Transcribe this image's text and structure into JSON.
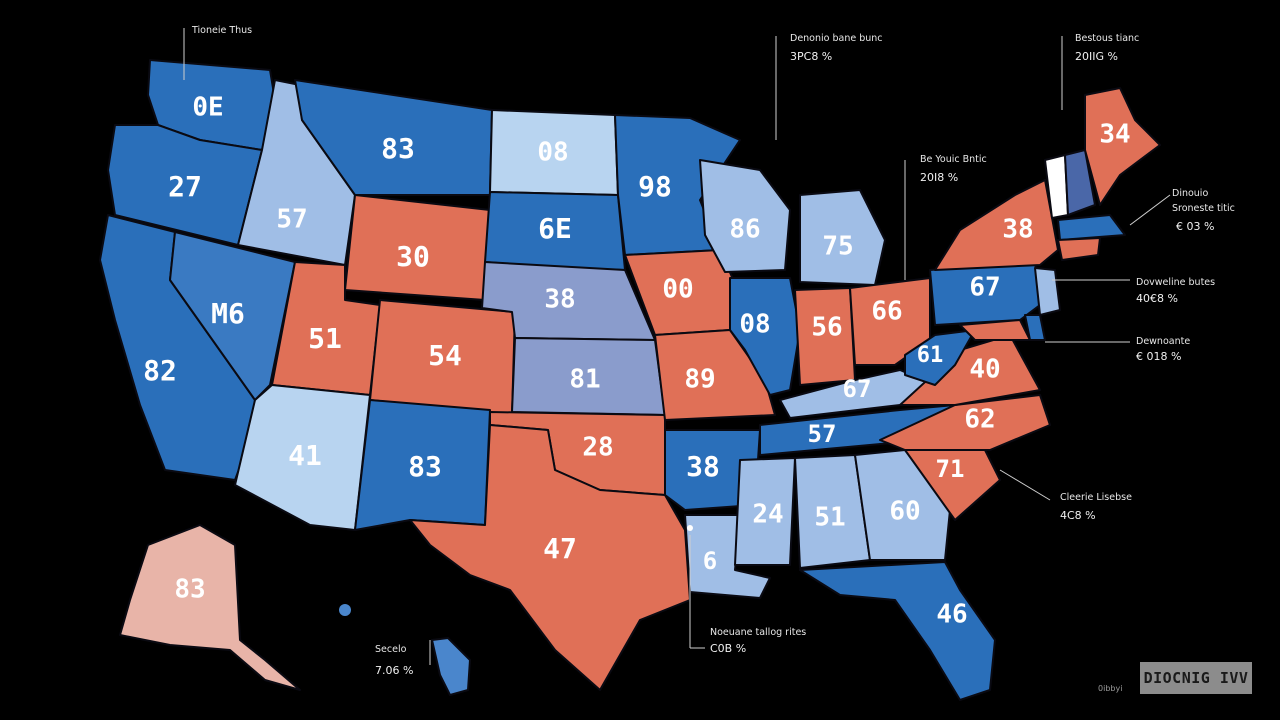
{
  "colors": {
    "blue_dark": "#2a6fba",
    "blue_mid": "#4a86cc",
    "blue_light": "#a8c8ea",
    "lavender": "#8a9ccc",
    "coral": "#e07057",
    "coral_light": "#e59a8a",
    "pink_light": "#e8b4a8",
    "background": "#000000"
  },
  "states": {
    "wa": "0E",
    "or": "27",
    "ca": "82",
    "nv": "M6",
    "id": "57",
    "mt": "83",
    "wy": "30",
    "ut": "51",
    "co": "54",
    "az": "41",
    "nm": "83",
    "nd": "08",
    "sd": "6E",
    "ne": "38",
    "ks": "81",
    "ok": "28",
    "tx": "47",
    "mn": "98",
    "ia": "00",
    "mo": "89",
    "ar": "38",
    "la": "6",
    "wi": "86",
    "il": "08",
    "mi": "75",
    "in": "56",
    "oh": "66",
    "ky": "67",
    "tn": "57",
    "ms": "24",
    "al": "51",
    "ga": "60",
    "fl": "46",
    "sc": "71",
    "nc": "62",
    "va": "40",
    "wv": "61",
    "pa": "67",
    "ny": "38",
    "me": "34",
    "ak": "83"
  },
  "callouts": [
    {
      "title": "Tioneie Thus",
      "value": ""
    },
    {
      "title": "Denonio bane bunc",
      "value": "3PC8 %"
    },
    {
      "title": "Bestous tianc",
      "value": "20IIG %"
    },
    {
      "title": "Be Youic Bntic",
      "value": "20I8 %"
    },
    {
      "title": "Dinouio",
      "value": ""
    },
    {
      "title": "Sroneste titic",
      "value": "€ 03 %"
    },
    {
      "title": "Dovweline butes",
      "value": "40€8 %"
    },
    {
      "title": "Dewnoante",
      "value": "€ 018 %"
    },
    {
      "title": "Cleerie Lisebse",
      "value": "4C8 %"
    },
    {
      "title": "Noeuane tallog rites",
      "value": "C0B %"
    },
    {
      "title": "Secelo",
      "value": "7.06 %"
    }
  ],
  "badge": {
    "label": "DIOCNIG IVV",
    "small": "0ibbyi"
  }
}
